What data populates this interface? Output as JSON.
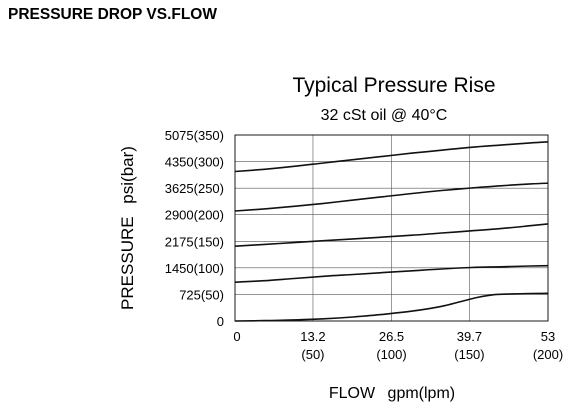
{
  "page": {
    "heading": "PRESSURE DROP VS.FLOW"
  },
  "chart_data": {
    "type": "line",
    "title": "Typical Pressure Rise",
    "subtitle": "32 cSt oil @ 40°C",
    "xlabel": "FLOW",
    "xlabel_units": "gpm(lpm)",
    "ylabel": "PRESSURE",
    "ylabel_units": "psi(bar)",
    "xlim": [
      0,
      53
    ],
    "ylim": [
      0,
      5075
    ],
    "grid": true,
    "x_ticks": [
      {
        "value": 0,
        "label": "0",
        "sublabel": ""
      },
      {
        "value": 13.2,
        "label": "13.2",
        "sublabel": "(50)"
      },
      {
        "value": 26.5,
        "label": "26.5",
        "sublabel": "(100)"
      },
      {
        "value": 39.7,
        "label": "39.7",
        "sublabel": "(150)"
      },
      {
        "value": 53,
        "label": "53",
        "sublabel": "(200)"
      }
    ],
    "y_ticks": [
      {
        "value": 0,
        "label": "0"
      },
      {
        "value": 725,
        "label": "725(50)"
      },
      {
        "value": 1450,
        "label": "1450(100)"
      },
      {
        "value": 2175,
        "label": "2175(150)"
      },
      {
        "value": 2900,
        "label": "2900(200)"
      },
      {
        "value": 3625,
        "label": "3625(250)"
      },
      {
        "value": 4350,
        "label": "4350(300)"
      },
      {
        "value": 5075,
        "label": "5075(350)"
      }
    ],
    "series": [
      {
        "x": [
          0,
          5,
          10,
          15,
          20,
          25,
          30,
          35,
          40,
          45,
          50,
          53
        ],
        "y": [
          4080,
          4140,
          4220,
          4310,
          4400,
          4490,
          4580,
          4660,
          4740,
          4800,
          4860,
          4890
        ]
      },
      {
        "x": [
          0,
          5,
          10,
          15,
          20,
          25,
          30,
          35,
          40,
          45,
          50,
          53
        ],
        "y": [
          3000,
          3060,
          3130,
          3210,
          3300,
          3390,
          3480,
          3560,
          3630,
          3690,
          3740,
          3760
        ]
      },
      {
        "x": [
          0,
          5,
          10,
          15,
          20,
          25,
          30,
          35,
          40,
          45,
          50,
          53
        ],
        "y": [
          2040,
          2090,
          2140,
          2190,
          2240,
          2290,
          2340,
          2400,
          2460,
          2520,
          2600,
          2650
        ]
      },
      {
        "x": [
          0,
          5,
          10,
          15,
          20,
          25,
          30,
          35,
          40,
          45,
          50,
          53
        ],
        "y": [
          1060,
          1100,
          1160,
          1220,
          1270,
          1320,
          1370,
          1420,
          1460,
          1480,
          1500,
          1510
        ]
      },
      {
        "x": [
          0,
          5,
          10,
          15,
          20,
          25,
          30,
          35,
          38,
          41,
          44,
          47,
          50,
          53
        ],
        "y": [
          0,
          10,
          30,
          60,
          110,
          180,
          270,
          400,
          520,
          640,
          720,
          740,
          750,
          755
        ]
      }
    ]
  }
}
